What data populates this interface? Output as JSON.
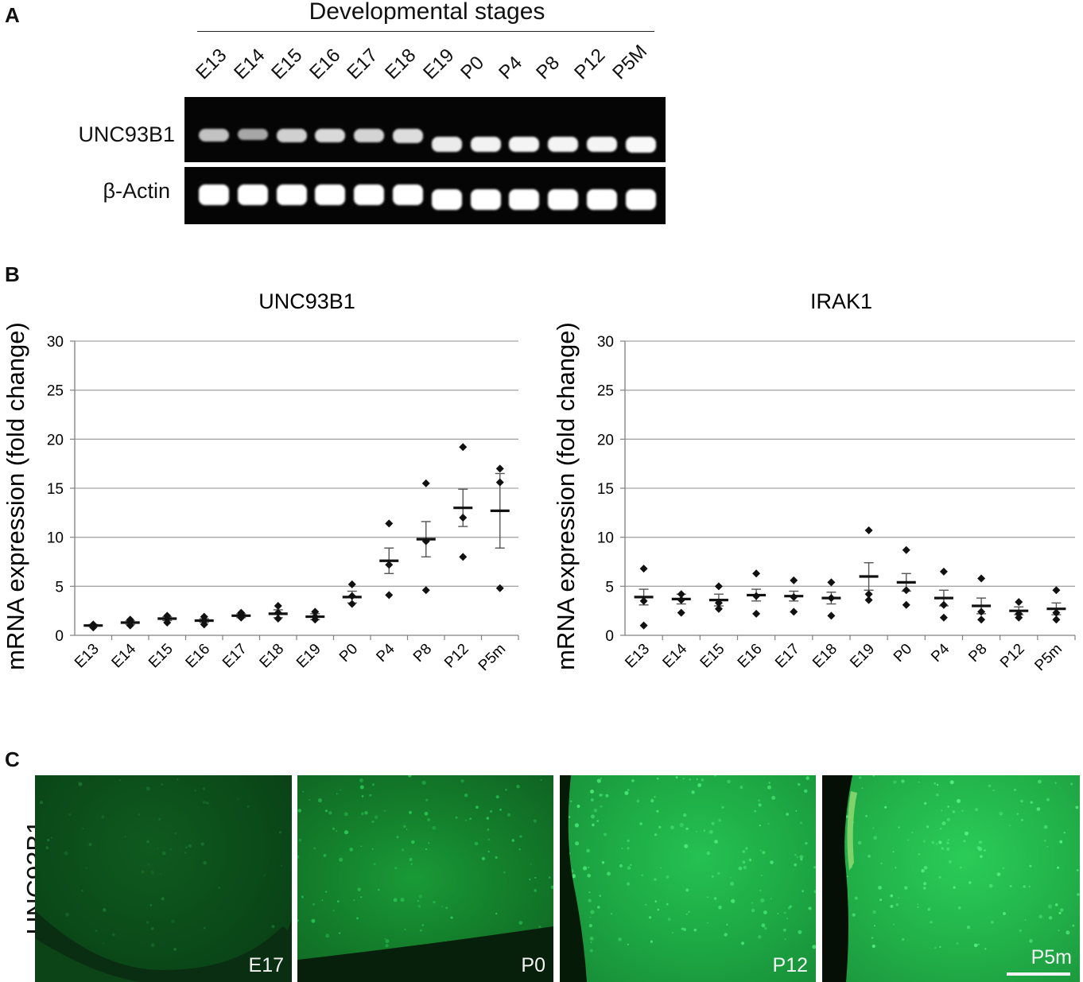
{
  "panels": {
    "a": "A",
    "b": "B",
    "c": "C"
  },
  "panel_a": {
    "header": "Developmental stages",
    "lanes": [
      "E13",
      "E14",
      "E15",
      "E16",
      "E17",
      "E18",
      "E19",
      "P0",
      "P4",
      "P8",
      "P12",
      "P5M"
    ],
    "rows": [
      {
        "label": "UNC93B1",
        "intensity": [
          0.55,
          0.35,
          0.65,
          0.72,
          0.68,
          0.75,
          0.85,
          0.9,
          0.92,
          0.92,
          0.92,
          0.95
        ]
      },
      {
        "label": "β-Actin",
        "intensity": [
          1,
          1,
          1,
          1,
          1,
          1,
          1,
          1,
          1,
          1,
          1,
          1
        ]
      }
    ]
  },
  "chart_data": [
    {
      "type": "scatter",
      "title": "UNC93B1",
      "ylabel": "mRNA expression (fold change)",
      "xlabel": "",
      "ylim": [
        0,
        30
      ],
      "yticks": [
        0,
        5,
        10,
        15,
        20,
        25,
        30
      ],
      "grid": true,
      "categories": [
        "E13",
        "E14",
        "E15",
        "E16",
        "E17",
        "E18",
        "E19",
        "P0",
        "P4",
        "P8",
        "P12",
        "P5m"
      ],
      "points": [
        [
          0.8,
          1.0,
          1.1
        ],
        [
          1.0,
          1.4,
          1.6
        ],
        [
          1.3,
          1.7,
          2.0
        ],
        [
          1.1,
          1.5,
          1.9
        ],
        [
          1.8,
          2.1,
          2.3
        ],
        [
          1.7,
          2.3,
          3.0
        ],
        [
          1.6,
          1.9,
          2.4
        ],
        [
          3.2,
          4.0,
          5.2
        ],
        [
          4.1,
          7.2,
          11.4
        ],
        [
          4.6,
          9.6,
          15.5
        ],
        [
          8.0,
          12.0,
          19.2
        ],
        [
          4.8,
          15.6,
          17.0
        ]
      ],
      "mean": [
        1.0,
        1.3,
        1.7,
        1.5,
        2.0,
        2.2,
        1.9,
        3.9,
        7.6,
        9.8,
        13.0,
        12.7
      ],
      "sem": [
        0.1,
        0.2,
        0.2,
        0.2,
        0.2,
        0.4,
        0.3,
        0.6,
        1.3,
        1.8,
        1.9,
        3.8
      ]
    },
    {
      "type": "scatter",
      "title": "IRAK1",
      "ylabel": "mRNA expression (fold change)",
      "xlabel": "",
      "ylim": [
        0,
        30
      ],
      "yticks": [
        0,
        5,
        10,
        15,
        20,
        25,
        30
      ],
      "grid": true,
      "categories": [
        "E13",
        "E14",
        "E15",
        "E16",
        "E17",
        "E18",
        "E19",
        "P0",
        "P4",
        "P8",
        "P12",
        "P5m"
      ],
      "points": [
        [
          1.0,
          3.5,
          6.8
        ],
        [
          2.3,
          3.6,
          4.2
        ],
        [
          2.7,
          3.3,
          5.0
        ],
        [
          2.2,
          4.0,
          6.3
        ],
        [
          2.4,
          3.9,
          5.6
        ],
        [
          2.0,
          3.8,
          5.4
        ],
        [
          3.6,
          4.2,
          10.7
        ],
        [
          3.1,
          4.6,
          8.7
        ],
        [
          1.8,
          3.1,
          6.5
        ],
        [
          1.6,
          2.4,
          5.8
        ],
        [
          1.8,
          2.2,
          3.4
        ],
        [
          1.6,
          2.3,
          4.6
        ]
      ],
      "mean": [
        3.9,
        3.7,
        3.6,
        4.1,
        4.0,
        3.8,
        6.0,
        5.4,
        3.8,
        3.0,
        2.5,
        2.7
      ],
      "sem": [
        0.8,
        0.5,
        0.6,
        0.6,
        0.5,
        0.6,
        1.4,
        0.9,
        0.8,
        0.8,
        0.4,
        0.6
      ]
    }
  ],
  "panel_c": {
    "row_label": "UNC93B1",
    "images": [
      {
        "label": "E17"
      },
      {
        "label": "P0"
      },
      {
        "label": "P12"
      },
      {
        "label": "P5m"
      }
    ],
    "colors": {
      "fluor_dark": "#0b3d12",
      "fluor_mid": "#137a2a",
      "fluor_bright": "#22c850"
    }
  }
}
